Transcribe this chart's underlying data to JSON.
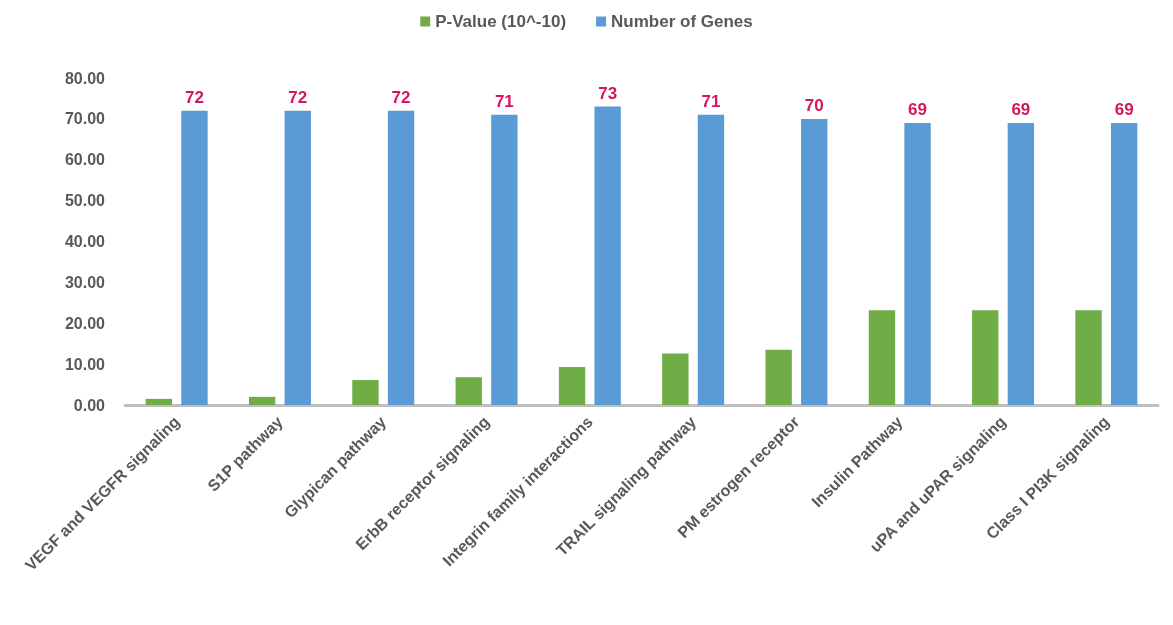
{
  "chart_data": {
    "type": "bar",
    "categories": [
      "VEGF and VEGFR signaling",
      "S1P pathway",
      "Glypican pathway",
      "ErbB receptor signaling",
      "Integrin family interactions",
      "TRAIL signaling pathway",
      "PM estrogen receptor",
      "Insulin Pathway",
      "uPA and uPAR signaling",
      "Class I PI3K signaling"
    ],
    "series": [
      {
        "name": "P-Value (10^-10)",
        "color": "#70ad47",
        "values": [
          1.5,
          2.0,
          6.1,
          6.8,
          9.3,
          12.6,
          13.5,
          23.2,
          23.2,
          23.2
        ]
      },
      {
        "name": "Number of Genes",
        "color": "#5b9bd5",
        "values": [
          72,
          72,
          72,
          71,
          73,
          71,
          70,
          69,
          69,
          69
        ],
        "value_labels": [
          "72",
          "72",
          "72",
          "71",
          "73",
          "71",
          "70",
          "69",
          "69",
          "69"
        ]
      }
    ],
    "ylim": [
      0,
      80
    ],
    "yticks": [
      {
        "value": 0,
        "label": "0.00"
      },
      {
        "value": 10,
        "label": "10.00"
      },
      {
        "value": 20,
        "label": "20.00"
      },
      {
        "value": 30,
        "label": "30.00"
      },
      {
        "value": 40,
        "label": "40.00"
      },
      {
        "value": 50,
        "label": "50.00"
      },
      {
        "value": 60,
        "label": "60.00"
      },
      {
        "value": 70,
        "label": "70.00"
      },
      {
        "value": 80,
        "label": "80.00"
      }
    ],
    "grid": false,
    "legend": "top"
  }
}
